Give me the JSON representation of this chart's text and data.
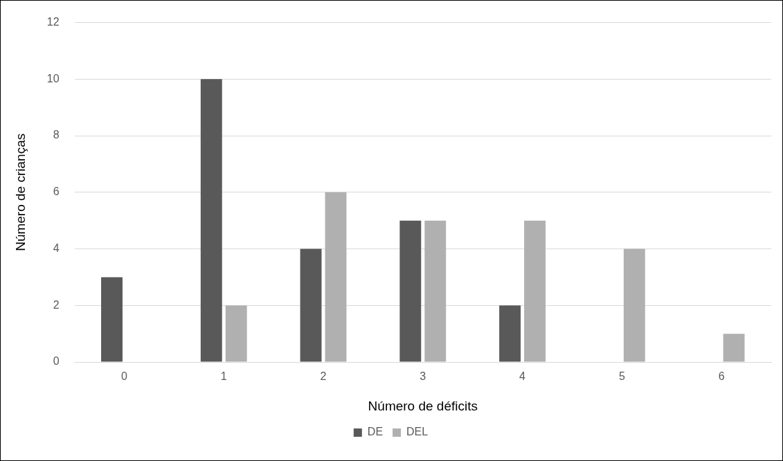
{
  "chart_data": {
    "type": "bar",
    "xlabel": "Número de déficits",
    "ylabel": "Número de crianças",
    "categories": [
      "0",
      "1",
      "2",
      "3",
      "4",
      "5",
      "6"
    ],
    "series": [
      {
        "name": "DE",
        "color": "#595959",
        "values": [
          3,
          10,
          4,
          5,
          2,
          0,
          0
        ]
      },
      {
        "name": "DEL",
        "color": "#b0b0b0",
        "values": [
          0,
          2,
          6,
          5,
          5,
          4,
          1
        ]
      }
    ],
    "ylim": [
      0,
      12
    ],
    "yticks": [
      0,
      2,
      4,
      6,
      8,
      10,
      12
    ],
    "grid": "y",
    "legend": "bottom"
  }
}
